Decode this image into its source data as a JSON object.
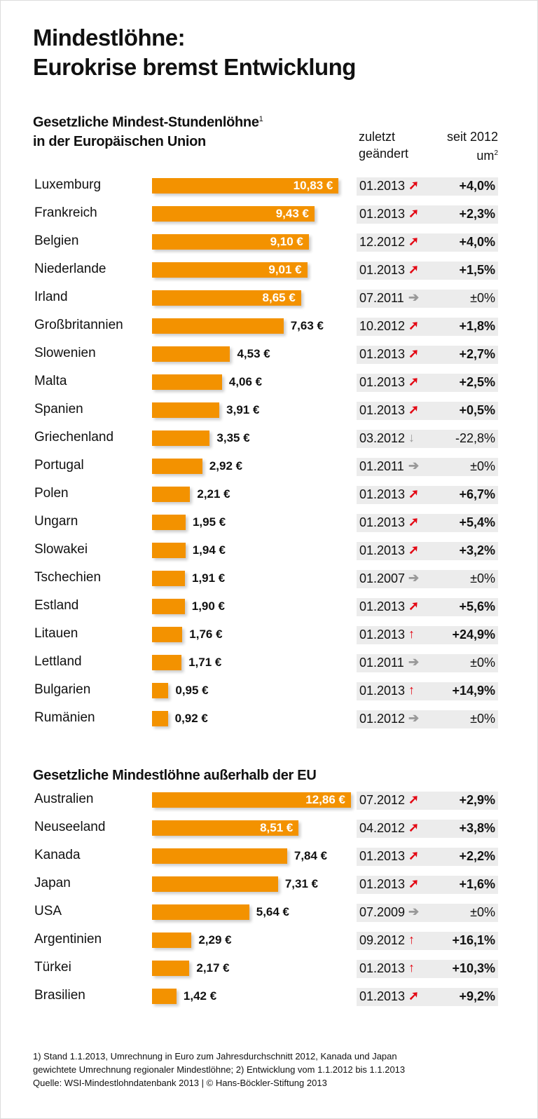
{
  "title_line1": "Mindestlöhne:",
  "title_line2": "Eurokrise bremst Entwicklung",
  "colors": {
    "bar": "#f39200",
    "arrow_up": "#e30613",
    "arrow_neutral": "#999999",
    "panel": "#ececec"
  },
  "chart_data": [
    {
      "type": "bar",
      "title_line1": "Gesetzliche Mindest-Stundenlöhne",
      "title_sup": "1",
      "title_line2": "in der Europäischen Union",
      "col_changed": [
        "zuletzt",
        "geändert"
      ],
      "col_change": [
        "seit 2012",
        "um"
      ],
      "col_change_sup": "2",
      "rows": [
        {
          "country": "Luxemburg",
          "value": 10.83,
          "label": "10,83 €",
          "date": "01.2013",
          "trend": "up-right",
          "change": "+4,0%"
        },
        {
          "country": "Frankreich",
          "value": 9.43,
          "label": "9,43 €",
          "date": "01.2013",
          "trend": "up-right",
          "change": "+2,3%"
        },
        {
          "country": "Belgien",
          "value": 9.1,
          "label": "9,10 €",
          "date": "12.2012",
          "trend": "up-right",
          "change": "+4,0%"
        },
        {
          "country": "Niederlande",
          "value": 9.01,
          "label": "9,01 €",
          "date": "01.2013",
          "trend": "up-right",
          "change": "+1,5%"
        },
        {
          "country": "Irland",
          "value": 8.65,
          "label": "8,65 €",
          "date": "07.2011",
          "trend": "right",
          "change": "±0%"
        },
        {
          "country": "Großbritannien",
          "value": 7.63,
          "label": "7,63 €",
          "date": "10.2012",
          "trend": "up-right",
          "change": "+1,8%"
        },
        {
          "country": "Slowenien",
          "value": 4.53,
          "label": "4,53 €",
          "date": "01.2013",
          "trend": "up-right",
          "change": "+2,7%"
        },
        {
          "country": "Malta",
          "value": 4.06,
          "label": "4,06 €",
          "date": "01.2013",
          "trend": "up-right",
          "change": "+2,5%"
        },
        {
          "country": "Spanien",
          "value": 3.91,
          "label": "3,91 €",
          "date": "01.2013",
          "trend": "up-right",
          "change": "+0,5%"
        },
        {
          "country": "Griechenland",
          "value": 3.35,
          "label": "3,35 €",
          "date": "03.2012",
          "trend": "down",
          "change": "-22,8%"
        },
        {
          "country": "Portugal",
          "value": 2.92,
          "label": "2,92 €",
          "date": "01.2011",
          "trend": "right",
          "change": "±0%"
        },
        {
          "country": "Polen",
          "value": 2.21,
          "label": "2,21 €",
          "date": "01.2013",
          "trend": "up-right",
          "change": "+6,7%"
        },
        {
          "country": "Ungarn",
          "value": 1.95,
          "label": "1,95 €",
          "date": "01.2013",
          "trend": "up-right",
          "change": "+5,4%"
        },
        {
          "country": "Slowakei",
          "value": 1.94,
          "label": "1,94 €",
          "date": "01.2013",
          "trend": "up-right",
          "change": "+3,2%"
        },
        {
          "country": "Tschechien",
          "value": 1.91,
          "label": "1,91 €",
          "date": "01.2007",
          "trend": "right",
          "change": "±0%"
        },
        {
          "country": "Estland",
          "value": 1.9,
          "label": "1,90 €",
          "date": "01.2013",
          "trend": "up-right",
          "change": "+5,6%"
        },
        {
          "country": "Litauen",
          "value": 1.76,
          "label": "1,76 €",
          "date": "01.2013",
          "trend": "up",
          "change": "+24,9%"
        },
        {
          "country": "Lettland",
          "value": 1.71,
          "label": "1,71 €",
          "date": "01.2011",
          "trend": "right",
          "change": "±0%"
        },
        {
          "country": "Bulgarien",
          "value": 0.95,
          "label": "0,95 €",
          "date": "01.2013",
          "trend": "up",
          "change": "+14,9%"
        },
        {
          "country": "Rumänien",
          "value": 0.92,
          "label": "0,92 €",
          "date": "01.2012",
          "trend": "right",
          "change": "±0%"
        }
      ]
    },
    {
      "type": "bar",
      "title_line1": "Gesetzliche Mindestlöhne außerhalb der EU",
      "rows": [
        {
          "country": "Australien",
          "value": 12.86,
          "label": "12,86 €",
          "date": "07.2012",
          "trend": "up-right",
          "change": "+2,9%"
        },
        {
          "country": "Neuseeland",
          "value": 8.51,
          "label": "8,51 €",
          "date": "04.2012",
          "trend": "up-right",
          "change": "+3,8%"
        },
        {
          "country": "Kanada",
          "value": 7.84,
          "label": "7,84 €",
          "date": "01.2013",
          "trend": "up-right",
          "change": "+2,2%"
        },
        {
          "country": "Japan",
          "value": 7.31,
          "label": "7,31 €",
          "date": "01.2013",
          "trend": "up-right",
          "change": "+1,6%"
        },
        {
          "country": "USA",
          "value": 5.64,
          "label": "5,64 €",
          "date": "07.2009",
          "trend": "right",
          "change": "±0%"
        },
        {
          "country": "Argentinien",
          "value": 2.29,
          "label": "2,29 €",
          "date": "09.2012",
          "trend": "up",
          "change": "+16,1%"
        },
        {
          "country": "Türkei",
          "value": 2.17,
          "label": "2,17 €",
          "date": "01.2013",
          "trend": "up",
          "change": "+10,3%"
        },
        {
          "country": "Brasilien",
          "value": 1.42,
          "label": "1,42 €",
          "date": "01.2013",
          "trend": "up-right",
          "change": "+9,2%"
        }
      ]
    }
  ],
  "footnote_line1": "1) Stand 1.1.2013, Umrechnung in Euro zum Jahresdurchschnitt 2012, Kanada und Japan",
  "footnote_line2": "gewichtete Umrechnung regionaler Mindestlöhne; 2) Entwicklung vom 1.1.2012 bis 1.1.2013",
  "source": "Quelle: WSI-Mindestlohndatenbank 2013 | © Hans-Böckler-Stiftung 2013"
}
